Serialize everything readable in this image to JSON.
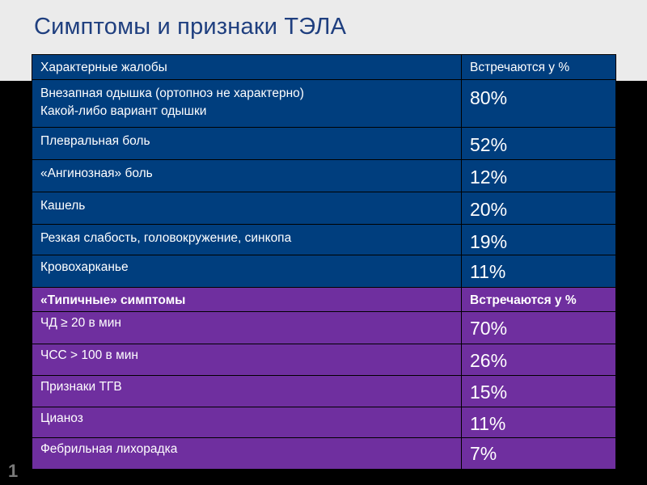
{
  "page": {
    "title": "Симптомы и признаки ТЭЛА",
    "slide_number": "1"
  },
  "sections": [
    {
      "header": {
        "name": "Характерные жалобы",
        "pct": "Встречаются у %"
      },
      "rows": [
        {
          "name_line1": "Внезапная одышка (ортопноэ не характерно)",
          "name_line2": "Какой-либо вариант одышки",
          "pct": "80%"
        },
        {
          "name": "Плевральная боль",
          "pct": "52%"
        },
        {
          "name": "«Ангинозная» боль",
          "pct": "12%"
        },
        {
          "name": "Кашель",
          "pct": "20%"
        },
        {
          "name": "Резкая слабость, головокружение, синкопа",
          "pct": "19%"
        },
        {
          "name": "Кровохарканье",
          "pct": "11%"
        }
      ]
    },
    {
      "header": {
        "name": "«Типичные» симптомы",
        "pct": "Встречаются у %"
      },
      "rows": [
        {
          "name": "ЧД ≥ 20 в мин",
          "pct": "70%"
        },
        {
          "name": "ЧСС > 100 в мин",
          "pct": "26%"
        },
        {
          "name": "Признаки ТГВ",
          "pct": "15%"
        },
        {
          "name": "Цианоз",
          "pct": "11%"
        },
        {
          "name": "Фебрильная лихорадка",
          "pct": "7%"
        }
      ]
    }
  ],
  "colors": {
    "complaints_section": "#003e7e",
    "symptoms_section": "#6f2f9f",
    "title": "#1f3f7f"
  }
}
